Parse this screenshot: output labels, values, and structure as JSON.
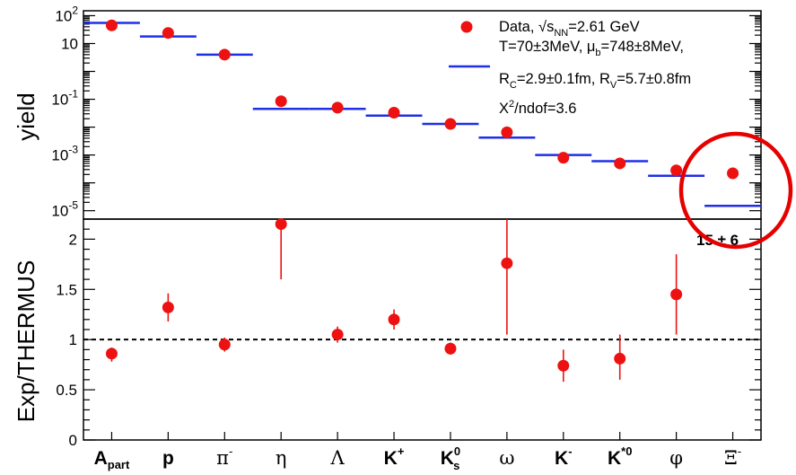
{
  "chart_data": [
    {
      "type": "scatter",
      "panel": "top",
      "ylabel": "yield",
      "yscale": "log",
      "ylim": [
        5e-06,
        150
      ],
      "ytick_labels": [
        {
          "base": "10",
          "exp": "2",
          "value": 100
        },
        {
          "base": "10",
          "exp": "",
          "value": 10
        },
        {
          "base": "10",
          "exp": "-1",
          "value": 0.1
        },
        {
          "base": "10",
          "exp": "-3",
          "value": 0.001
        },
        {
          "base": "10",
          "exp": "-5",
          "value": 1e-05
        }
      ],
      "categories": [
        "A_part",
        "p",
        "π-",
        "η",
        "Λ",
        "K+",
        "K0s",
        "ω",
        "K-",
        "K*0",
        "φ",
        "Ξ-"
      ],
      "series": [
        {
          "name": "Data, √sNN=2.61 GeV",
          "style": "marker",
          "values": [
            45,
            24,
            4.0,
            0.085,
            0.05,
            0.033,
            0.013,
            0.0065,
            0.0008,
            0.0005,
            0.00028,
            0.00022
          ]
        },
        {
          "name": "T=70±3MeV, μb=748±8MeV, RC=2.9±0.1fm, RV=5.7±0.8fm",
          "style": "line",
          "values": [
            55,
            18,
            4.0,
            0.045,
            0.045,
            0.026,
            0.013,
            0.0042,
            0.001,
            0.0006,
            0.00018,
            1.5e-05
          ]
        }
      ],
      "legend": {
        "position": "top-right",
        "data_label": {
          "pre": "Data, √s",
          "sub": "NN",
          "post": "=2.61 GeV"
        },
        "fit_line1": {
          "a": "T=70±3MeV, μ",
          "sub": "b",
          "b": "=748±8MeV,"
        },
        "fit_line2": {
          "a": "R",
          "sub1": "C",
          "b": "=2.9±0.1fm, R",
          "sub2": "V",
          "c": "=5.7±0.8fm"
        },
        "chi2": {
          "a": "X",
          "sup": "2",
          "b": "/ndof=3.6"
        }
      }
    },
    {
      "type": "scatter",
      "panel": "bottom",
      "ylabel": "Exp/THERMUS",
      "ylim": [
        0,
        2.2
      ],
      "yticks": [
        "0",
        "0.5",
        "1",
        "1.5",
        "2"
      ],
      "reference_line": 1,
      "annotation": "15 ± 6",
      "categories": [
        "A_part",
        "p",
        "π-",
        "η",
        "Λ",
        "K+",
        "K0s",
        "ω",
        "K-",
        "K*0",
        "φ",
        "Ξ-"
      ],
      "series": [
        {
          "name": "Exp/THERMUS",
          "values": [
            0.86,
            1.32,
            0.95,
            2.15,
            1.05,
            1.2,
            0.91,
            1.76,
            0.74,
            0.81,
            1.45,
            null
          ],
          "err_low": [
            0.78,
            1.18,
            0.88,
            1.6,
            0.97,
            1.1,
            0.85,
            1.05,
            0.58,
            0.6,
            1.05,
            null
          ],
          "err_high": [
            0.92,
            1.46,
            1.02,
            2.2,
            1.13,
            1.3,
            0.97,
            2.2,
            0.9,
            1.05,
            1.85,
            null
          ]
        }
      ]
    }
  ],
  "x_tick_labels": [
    {
      "base": "A",
      "sub": "part",
      "sup": ""
    },
    {
      "base": "p",
      "sub": "",
      "sup": ""
    },
    {
      "base": "π",
      "sub": "",
      "sup": "-"
    },
    {
      "base": "η",
      "sub": "",
      "sup": ""
    },
    {
      "base": "Λ",
      "sub": "",
      "sup": ""
    },
    {
      "base": "K",
      "sub": "",
      "sup": "+"
    },
    {
      "base": "K",
      "sub": "s",
      "sup": "0"
    },
    {
      "base": "ω",
      "sub": "",
      "sup": ""
    },
    {
      "base": "K",
      "sub": "",
      "sup": "-"
    },
    {
      "base": "K",
      "sub": "",
      "sup": "*0"
    },
    {
      "base": "φ",
      "sub": "",
      "sup": ""
    },
    {
      "base": "Ξ",
      "sub": "",
      "sup": "-"
    }
  ],
  "colors": {
    "data": "#ee1111",
    "model": "#1f2fe8",
    "highlight": "#e60000",
    "axis": "#000000"
  }
}
